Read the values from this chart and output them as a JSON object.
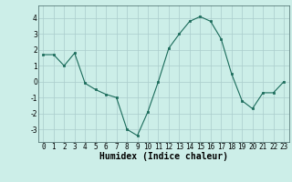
{
  "x": [
    0,
    1,
    2,
    3,
    4,
    5,
    6,
    7,
    8,
    9,
    10,
    11,
    12,
    13,
    14,
    15,
    16,
    17,
    18,
    19,
    20,
    21,
    22,
    23
  ],
  "y": [
    1.7,
    1.7,
    1.0,
    1.8,
    -0.1,
    -0.5,
    -0.8,
    -1.0,
    -3.0,
    -3.4,
    -1.9,
    0.0,
    2.1,
    3.0,
    3.8,
    4.1,
    3.8,
    2.7,
    0.5,
    -1.2,
    -1.7,
    -0.7,
    -0.7,
    0.0
  ],
  "xlabel": "Humidex (Indice chaleur)",
  "ylim": [
    -3.8,
    4.8
  ],
  "xlim": [
    -0.5,
    23.5
  ],
  "yticks": [
    -3,
    -2,
    -1,
    0,
    1,
    2,
    3,
    4
  ],
  "xticks": [
    0,
    1,
    2,
    3,
    4,
    5,
    6,
    7,
    8,
    9,
    10,
    11,
    12,
    13,
    14,
    15,
    16,
    17,
    18,
    19,
    20,
    21,
    22,
    23
  ],
  "line_color": "#1a6b5a",
  "marker_color": "#1a6b5a",
  "bg_color": "#cceee8",
  "grid_color": "#aacccc",
  "xlabel_fontsize": 7,
  "tick_fontsize": 5.5,
  "linewidth": 0.8,
  "markersize": 2.0
}
